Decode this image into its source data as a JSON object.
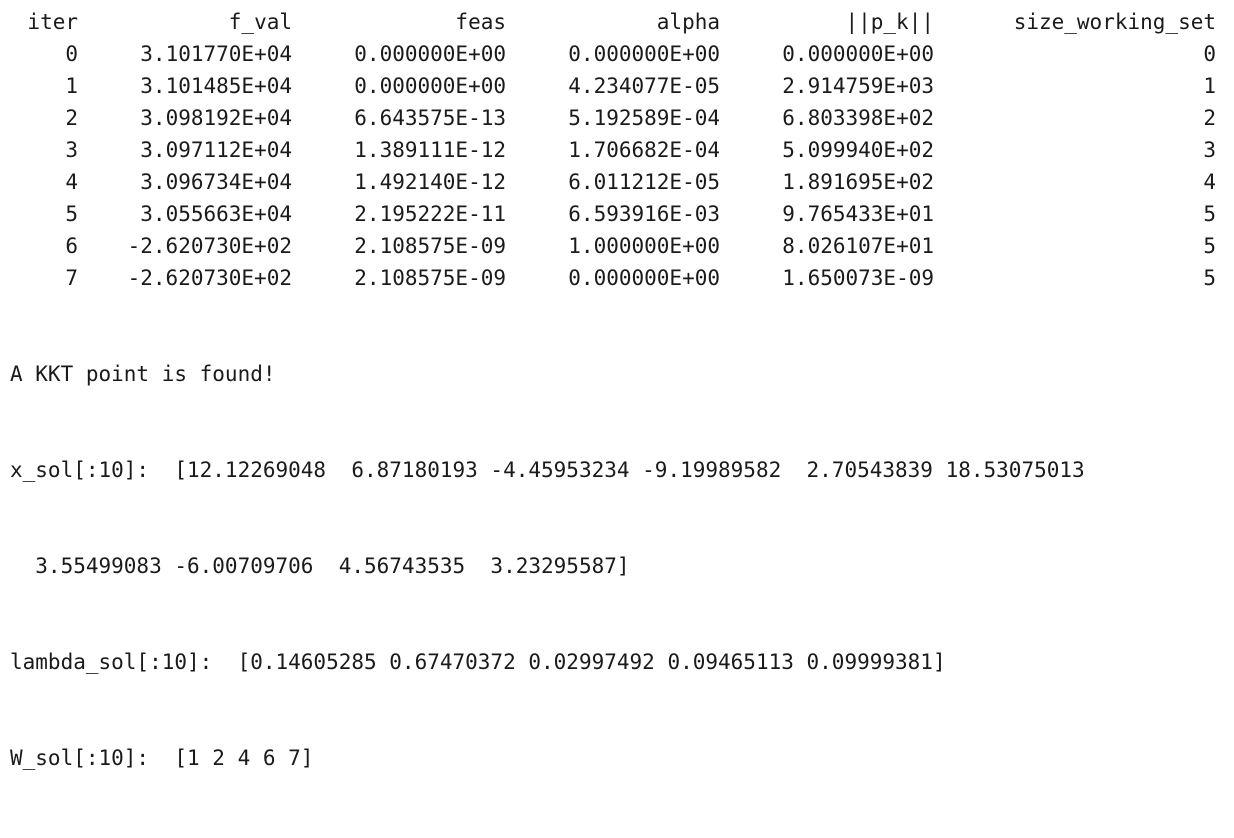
{
  "table": {
    "headers": [
      "iter",
      "f_val",
      "feas",
      "alpha",
      "||p_k||",
      "size_working_set"
    ],
    "rows": [
      [
        "0",
        "3.101770E+04",
        "0.000000E+00",
        "0.000000E+00",
        "0.000000E+00",
        "0"
      ],
      [
        "1",
        "3.101485E+04",
        "0.000000E+00",
        "4.234077E-05",
        "2.914759E+03",
        "1"
      ],
      [
        "2",
        "3.098192E+04",
        "6.643575E-13",
        "5.192589E-04",
        "6.803398E+02",
        "2"
      ],
      [
        "3",
        "3.097112E+04",
        "1.389111E-12",
        "1.706682E-04",
        "5.099940E+02",
        "3"
      ],
      [
        "4",
        "3.096734E+04",
        "1.492140E-12",
        "6.011212E-05",
        "1.891695E+02",
        "4"
      ],
      [
        "5",
        "3.055663E+04",
        "2.195222E-11",
        "6.593916E-03",
        "9.765433E+01",
        "5"
      ],
      [
        "6",
        "-2.620730E+02",
        "2.108575E-09",
        "1.000000E+00",
        "8.026107E+01",
        "5"
      ],
      [
        "7",
        "-2.620730E+02",
        "2.108575E-09",
        "0.000000E+00",
        "1.650073E-09",
        "5"
      ]
    ]
  },
  "output_lines": [
    "A KKT point is found!",
    "x_sol[:10]:  [12.12269048  6.87180193 -4.45953234 -9.19989582  2.70543839 18.53075013",
    "  3.55499083 -6.00709706  4.56743535  3.23295587]",
    "lambda_sol[:10]:  [0.14605285 0.67470372 0.02997492 0.09465113 0.09999381]",
    "W_sol[:10]:  [1 2 4 6 7]"
  ]
}
